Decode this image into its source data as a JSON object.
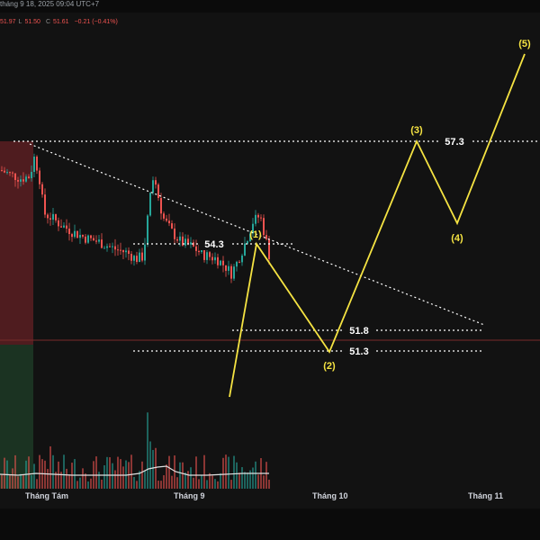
{
  "header": {
    "datetime_text": "tháng 9 18, 2025 09:04 UTC+7",
    "ohlc": {
      "h": "51.97",
      "l_prefix": "L",
      "l": "51.50",
      "c_prefix": "C",
      "c": "51.61",
      "change": "−0.21 (−0.41%)"
    }
  },
  "x_axis": {
    "labels": [
      "Tháng Tám",
      "Tháng 9",
      "Tháng 10",
      "Tháng 11"
    ]
  },
  "annotations": {
    "levels": [
      "57.3",
      "54.3",
      "51.8",
      "51.3"
    ],
    "wave_labels": [
      "(1)",
      "(2)",
      "(3)",
      "(4)",
      "(5)"
    ]
  },
  "colors": {
    "background": "#121212",
    "up_candle": "#26a69a",
    "down_candle": "#ef5350",
    "wave_line": "#f5e342",
    "dotted_line": "#ffffff",
    "red_zone": "#5a1e22",
    "green_zone": "#1d3a26"
  },
  "chart_data": {
    "type": "candlestick",
    "x_labels": [
      "Tháng Tám",
      "Tháng 9",
      "Tháng 10",
      "Tháng 11"
    ],
    "price_levels": [
      57.3,
      54.3,
      51.8,
      51.3
    ],
    "wave_points": [
      {
        "label": "(1)",
        "value": 54.3
      },
      {
        "label": "(2)",
        "value": 51.3
      },
      {
        "label": "(3)",
        "value": 57.3
      },
      {
        "label": "(4)",
        "value": 55.1
      },
      {
        "label": "(5)",
        "value": 61.5
      }
    ],
    "last_close": 51.61
  }
}
